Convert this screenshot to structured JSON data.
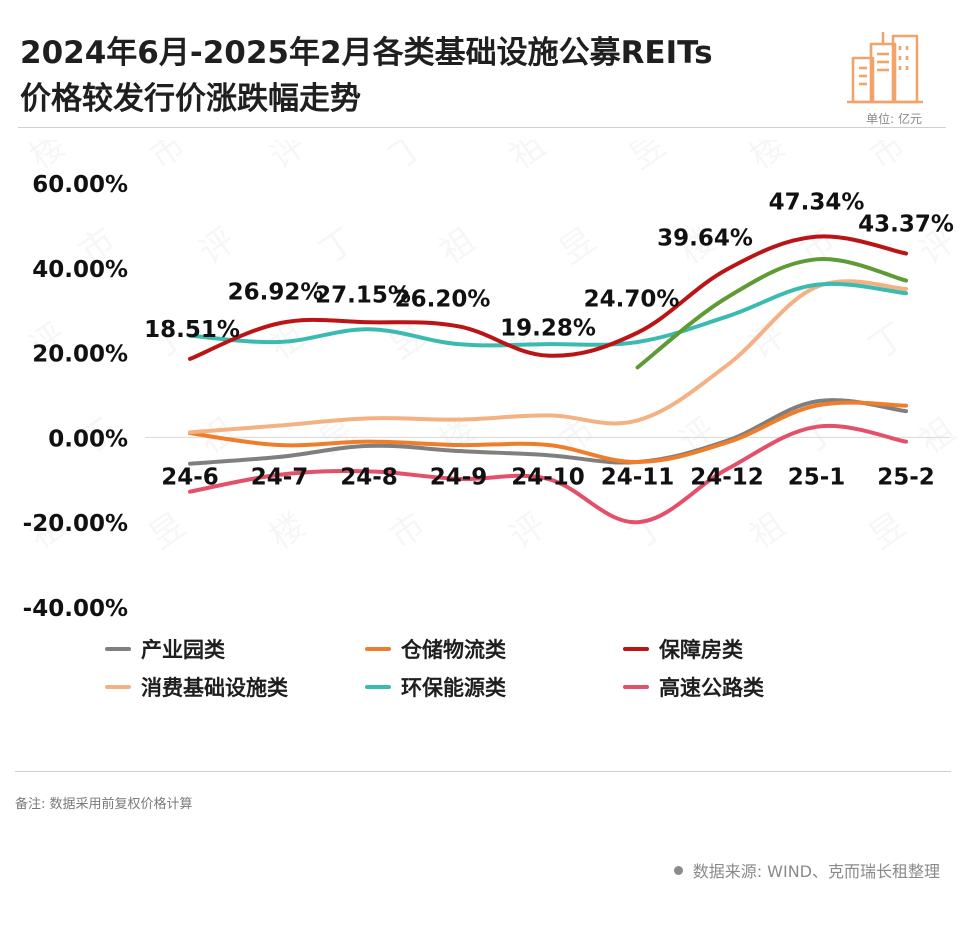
{
  "header": {
    "title_line1": "2024年6月-2025年2月各类基础设施公募REITs",
    "title_line2": "价格较发行价涨跌幅走势",
    "unit": "单位: 亿元"
  },
  "footer": {
    "note": "备注:  数据采用前复权价格计算",
    "source": "数据来源:  WIND、克而瑞长租整理"
  },
  "colors": {
    "产业园类": "#7f7f7f",
    "仓储物流类": "#ef7d2a",
    "保障房类": "#bb1416",
    "消费基础设施类": "#f4b183",
    "环保能源类": "#3bbbb0",
    "高速公路类": "#e4506a",
    "extra": "#5e9a35",
    "logo": "#f0a36a"
  },
  "chart_data": {
    "type": "line",
    "categories": [
      "24-6",
      "24-7",
      "24-8",
      "24-9",
      "24-10",
      "24-11",
      "24-12",
      "25-1",
      "25-2"
    ],
    "ylim": [
      -40,
      60
    ],
    "yticks": [
      "60.00%",
      "40.00%",
      "20.00%",
      "0.00%",
      "-20.00%",
      "-40.00%"
    ],
    "ytick_values": [
      60,
      40,
      20,
      0,
      -20,
      -40
    ],
    "grid": false,
    "legend": "bottom",
    "series": [
      {
        "name": "产业园类",
        "values": [
          -6.2,
          -4.6,
          -2.0,
          -3.2,
          -4.2,
          -5.8,
          -0.8,
          8.5,
          6.2
        ]
      },
      {
        "name": "仓储物流类",
        "values": [
          1.0,
          -1.8,
          -1.0,
          -1.8,
          -1.8,
          -5.8,
          -1.2,
          7.5,
          7.5
        ]
      },
      {
        "name": "保障房类",
        "values": [
          18.51,
          26.92,
          27.15,
          26.2,
          19.28,
          24.7,
          39.64,
          47.34,
          43.37
        ]
      },
      {
        "name": "消费基础设施类",
        "values": [
          1.2,
          2.8,
          4.5,
          4.2,
          5.2,
          4.0,
          17.0,
          35.5,
          35.0
        ]
      },
      {
        "name": "环保能源类",
        "values": [
          24.0,
          22.5,
          25.5,
          22.0,
          22.0,
          22.5,
          28.5,
          36.0,
          34.0
        ]
      },
      {
        "name": "高速公路类",
        "values": [
          -12.8,
          -8.8,
          -8.0,
          -9.8,
          -9.8,
          -20.0,
          -7.5,
          2.5,
          -1.0
        ]
      },
      {
        "name": "",
        "color": "#5e9a35",
        "start_index": 5,
        "values": [
          null,
          null,
          null,
          null,
          null,
          16.5,
          33.0,
          42.0,
          37.0
        ]
      }
    ],
    "data_labels": [
      "18.51%",
      "26.92%",
      "27.15%",
      "26.20%",
      "19.28%",
      "24.70%",
      "39.64%",
      "47.34%",
      "43.37%"
    ]
  }
}
